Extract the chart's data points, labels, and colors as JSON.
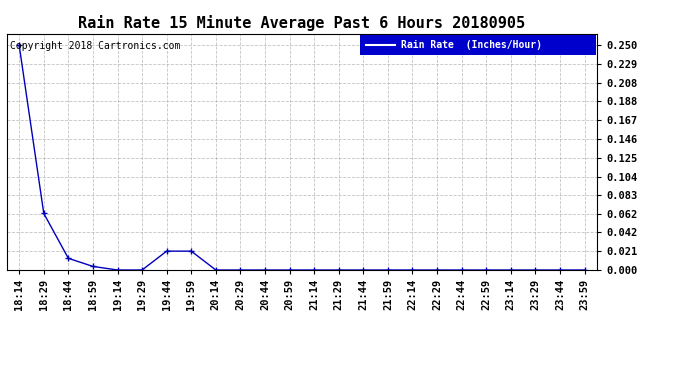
{
  "title": "Rain Rate 15 Minute Average Past 6 Hours 20180905",
  "copyright_text": "Copyright 2018 Cartronics.com",
  "legend_label": "Rain Rate  (Inches/Hour)",
  "x_labels": [
    "18:14",
    "18:29",
    "18:44",
    "18:59",
    "19:14",
    "19:29",
    "19:44",
    "19:59",
    "20:14",
    "20:29",
    "20:44",
    "20:59",
    "21:14",
    "21:29",
    "21:44",
    "21:59",
    "22:14",
    "22:29",
    "22:44",
    "22:59",
    "23:14",
    "23:29",
    "23:44",
    "23:59"
  ],
  "y_values": [
    0.25,
    0.063,
    0.013,
    0.004,
    0.0,
    0.0,
    0.021,
    0.021,
    0.0,
    0.0,
    0.0,
    0.0,
    0.0,
    0.0,
    0.0,
    0.0,
    0.0,
    0.0,
    0.0,
    0.0,
    0.0,
    0.0,
    0.0,
    0.0
  ],
  "y_ticks": [
    0.0,
    0.021,
    0.042,
    0.062,
    0.083,
    0.104,
    0.125,
    0.146,
    0.167,
    0.188,
    0.208,
    0.229,
    0.25
  ],
  "ylim": [
    0.0,
    0.263
  ],
  "line_color": "#0000bb",
  "marker_color": "#0000bb",
  "bg_color": "#ffffff",
  "grid_color": "#aaaaaa",
  "title_fontsize": 11,
  "copyright_fontsize": 7,
  "tick_fontsize": 7.5,
  "legend_bg": "#0000cc",
  "legend_text_color": "#ffffff"
}
